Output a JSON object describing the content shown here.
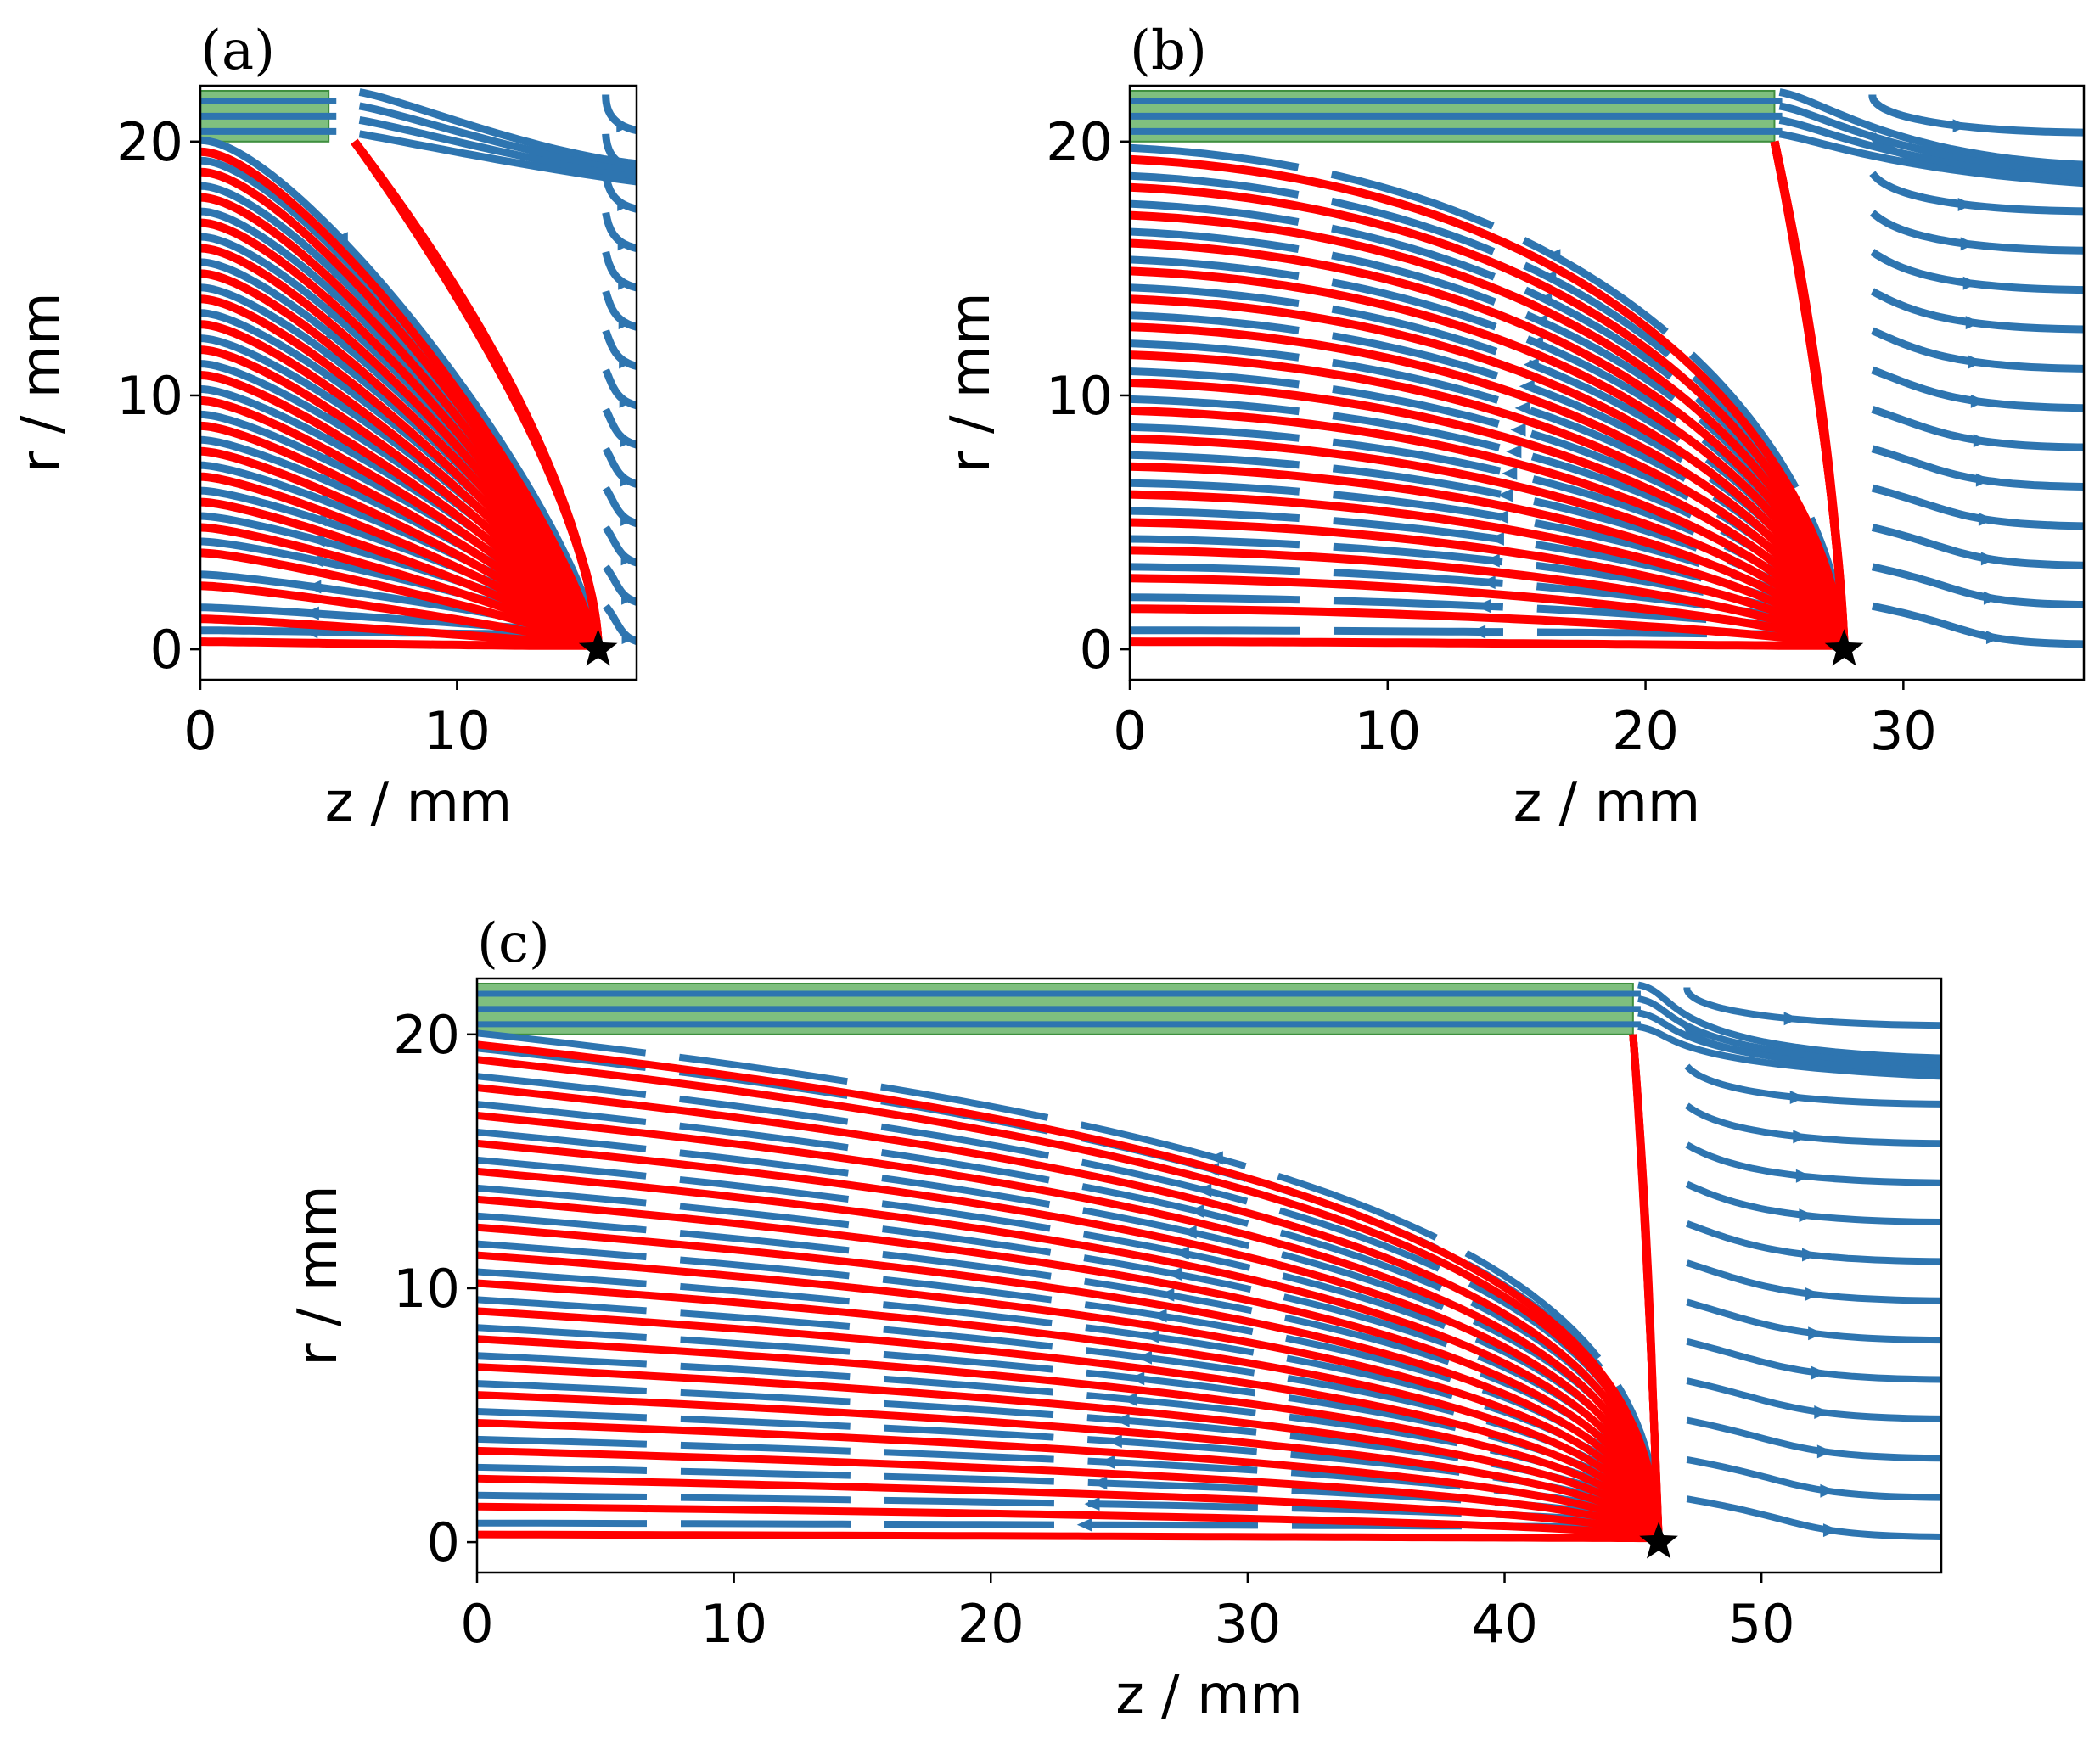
{
  "figure": {
    "colors": {
      "field_line": "#2e75b0",
      "trajectory": "#ff0000",
      "electrode": "#7fbf7f",
      "electrode_edge": "#3f8f3f",
      "marker": "#000000"
    }
  },
  "chart_data": [
    {
      "type": "streamline",
      "panel_label": "(a)",
      "xlabel": "z / mm",
      "ylabel": "r / mm",
      "xlim": [
        0,
        17
      ],
      "ylim": [
        -1.2,
        22.2
      ],
      "xticks": [
        0,
        10
      ],
      "yticks": [
        0,
        10,
        20
      ],
      "electrode": {
        "z_start": 0,
        "z_end": 5,
        "r_start": 20,
        "r_end": 22
      },
      "tip": [
        6.0,
        20.0
      ],
      "star": [
        15.5,
        0
      ],
      "trajectory_start_r": [
        0.3,
        1.2,
        2.5,
        3.8,
        4.8,
        5.8,
        6.8,
        7.8,
        8.8,
        9.8,
        10.8,
        11.8,
        12.8,
        13.8,
        14.8,
        15.8,
        16.8,
        17.8,
        18.8,
        19.6
      ]
    },
    {
      "type": "streamline",
      "panel_label": "(b)",
      "xlabel": "z / mm",
      "ylabel": "r / mm",
      "xlim": [
        0,
        37
      ],
      "ylim": [
        -1.2,
        22.2
      ],
      "xticks": [
        0,
        10,
        20,
        30
      ],
      "yticks": [
        0,
        10,
        20
      ],
      "electrode": {
        "z_start": 0,
        "z_end": 25,
        "r_start": 20,
        "r_end": 22
      },
      "tip": [
        25.0,
        20.0
      ],
      "star": [
        27.7,
        0
      ],
      "trajectory_start_r": [
        0.3,
        1.6,
        2.8,
        3.9,
        5.0,
        6.1,
        7.2,
        8.3,
        9.4,
        10.5,
        11.6,
        12.7,
        13.8,
        14.9,
        16.0,
        17.1,
        18.2,
        19.3
      ]
    },
    {
      "type": "streamline",
      "panel_label": "(c)",
      "xlabel": "z / mm",
      "ylabel": "r / mm",
      "xlim": [
        0,
        57
      ],
      "ylim": [
        -1.2,
        22.2
      ],
      "xticks": [
        0,
        10,
        20,
        30,
        40,
        50
      ],
      "yticks": [
        0,
        10,
        20
      ],
      "electrode": {
        "z_start": 0,
        "z_end": 45,
        "r_start": 20,
        "r_end": 22
      },
      "tip": [
        45.0,
        20.0
      ],
      "star": [
        46.0,
        0
      ],
      "trajectory_start_r": [
        0.3,
        1.4,
        2.5,
        3.6,
        4.7,
        5.8,
        6.9,
        8.0,
        9.1,
        10.2,
        11.3,
        12.4,
        13.5,
        14.6,
        15.7,
        16.8,
        17.9,
        19.0,
        19.6
      ]
    }
  ]
}
